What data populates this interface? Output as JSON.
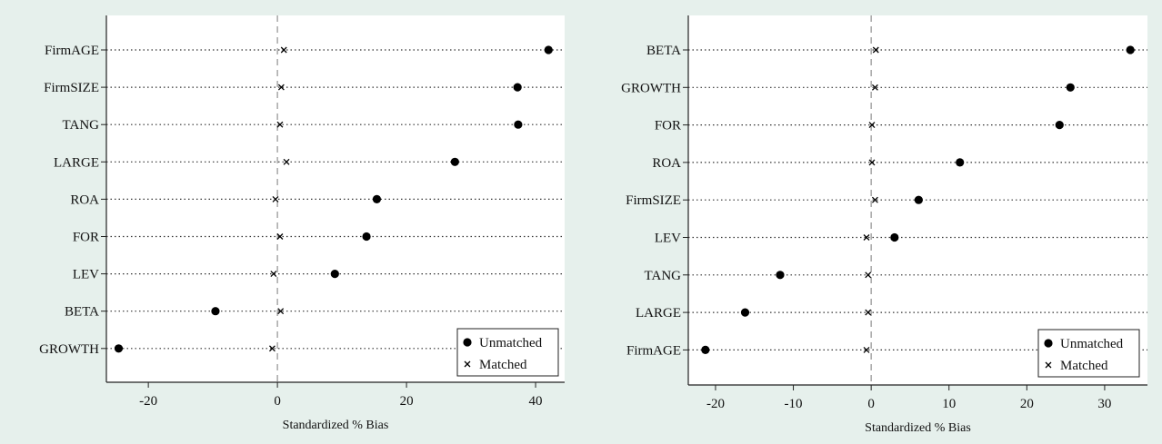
{
  "chart_data": [
    {
      "type": "scatter",
      "xlabel": "Standardized % Bias",
      "xlim": [
        -26.5,
        44.5
      ],
      "xticks": [
        "-20",
        "0",
        "20",
        "40"
      ],
      "xtick_values": [
        -20,
        0,
        20,
        40
      ],
      "categories": [
        "FirmAGE",
        "FirmSIZE",
        "TANG",
        "LARGE",
        "ROA",
        "FOR",
        "LEV",
        "BETA",
        "GROWTH"
      ],
      "series": [
        {
          "name": "Unmatched",
          "marker": "dot",
          "values": [
            42.0,
            37.2,
            37.3,
            27.5,
            15.4,
            13.8,
            8.9,
            -9.6,
            -24.6
          ]
        },
        {
          "name": "Matched",
          "marker": "x",
          "values": [
            1.0,
            0.6,
            0.4,
            1.4,
            -0.3,
            0.4,
            -0.6,
            0.5,
            -0.8
          ]
        }
      ],
      "reference_line": 0,
      "grid": "dotted horizontal",
      "legend": "bottom-right"
    },
    {
      "type": "scatter",
      "xlabel": "Standardized % Bias",
      "xlim": [
        -23.5,
        35.5
      ],
      "xticks": [
        "-20",
        "-10",
        "0",
        "10",
        "20",
        "30"
      ],
      "xtick_values": [
        -20,
        -10,
        0,
        10,
        20,
        30
      ],
      "categories": [
        "BETA",
        "GROWTH",
        "FOR",
        "ROA",
        "FirmSIZE",
        "LEV",
        "TANG",
        "LARGE",
        "FirmAGE"
      ],
      "series": [
        {
          "name": "Unmatched",
          "marker": "dot",
          "values": [
            33.3,
            25.6,
            24.2,
            11.4,
            6.1,
            3.0,
            -11.7,
            -16.2,
            -21.3
          ]
        },
        {
          "name": "Matched",
          "marker": "x",
          "values": [
            0.6,
            0.5,
            0.1,
            0.1,
            0.5,
            -0.6,
            -0.4,
            -0.4,
            -0.6
          ]
        }
      ],
      "reference_line": 0,
      "grid": "dotted horizontal",
      "legend": "bottom-right"
    }
  ]
}
